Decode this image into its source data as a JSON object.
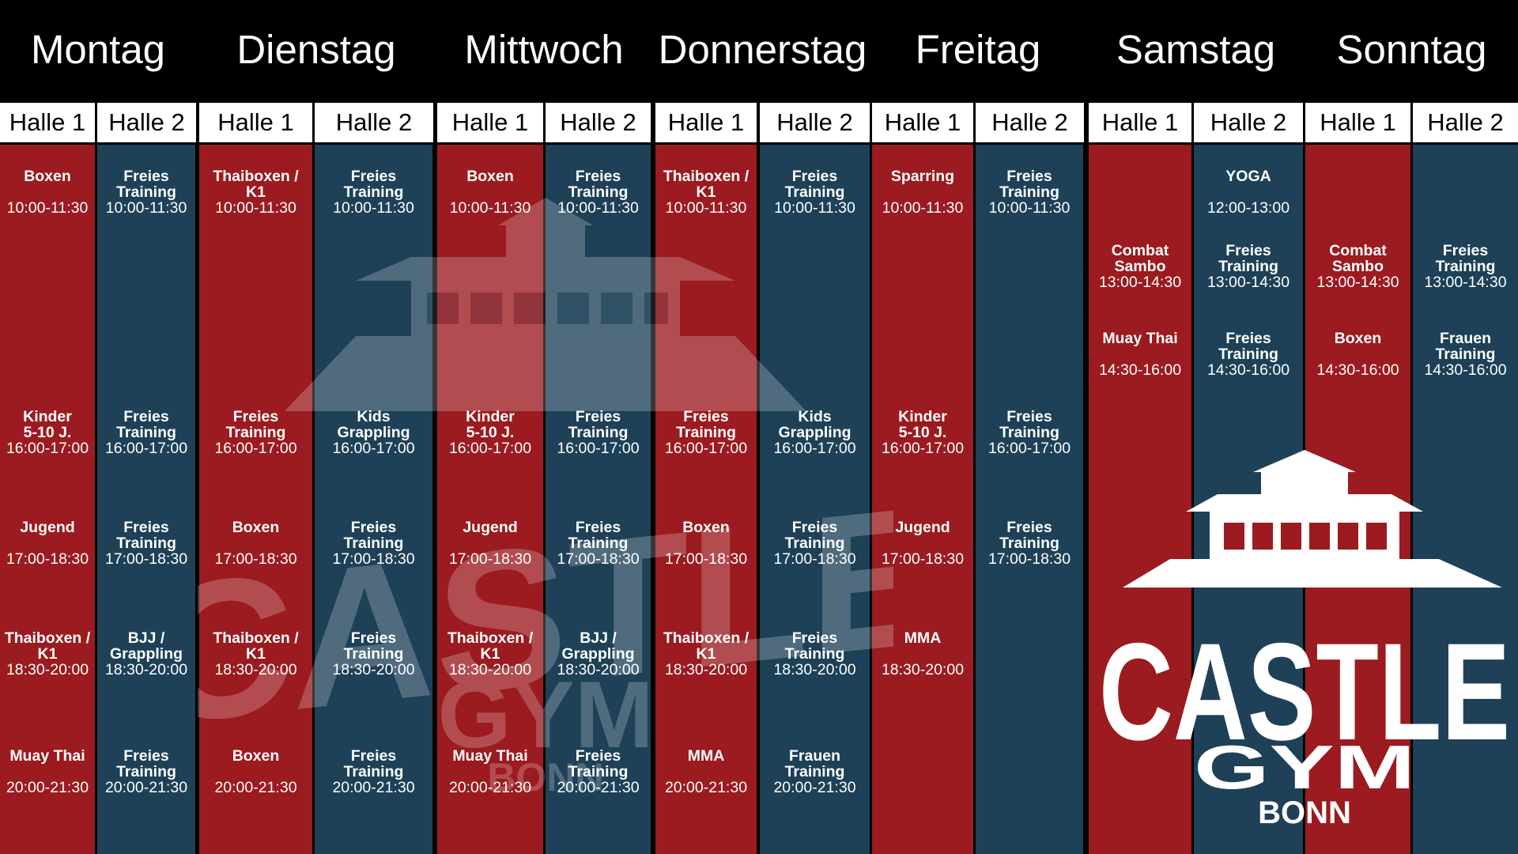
{
  "days": [
    "Montag",
    "Dienstag",
    "Mittwoch",
    "Donnerstag",
    "Freitag",
    "Samstag",
    "Sonntag"
  ],
  "hall_labels": [
    "Halle 1",
    "Halle 2"
  ],
  "schedule": {
    "montag": {
      "h1": [
        {
          "name": "Boxen",
          "time": "10:00-11:30"
        },
        {
          "name": "Kinder\n5-10 J.",
          "time": "16:00-17:00"
        },
        {
          "name": "Jugend",
          "time": "17:00-18:30"
        },
        {
          "name": "Thaiboxen /\nK1",
          "time": "18:30-20:00"
        },
        {
          "name": "Muay Thai",
          "time": "20:00-21:30"
        }
      ],
      "h2": [
        {
          "name": "Freies\nTraining",
          "time": "10:00-11:30"
        },
        {
          "name": "Freies\nTraining",
          "time": "16:00-17:00"
        },
        {
          "name": "Freies\nTraining",
          "time": "17:00-18:30"
        },
        {
          "name": "BJJ /\nGrappling",
          "time": "18:30-20:00"
        },
        {
          "name": "Freies\nTraining",
          "time": "20:00-21:30"
        }
      ]
    },
    "dienstag": {
      "h1": [
        {
          "name": "Thaiboxen /\nK1",
          "time": "10:00-11:30"
        },
        {
          "name": "Freies\nTraining",
          "time": "16:00-17:00"
        },
        {
          "name": "Boxen",
          "time": "17:00-18:30"
        },
        {
          "name": "Thaiboxen /\nK1",
          "time": "18:30-20:00"
        },
        {
          "name": "Boxen",
          "time": "20:00-21:30"
        }
      ],
      "h2": [
        {
          "name": "Freies\nTraining",
          "time": "10:00-11:30"
        },
        {
          "name": "Kids\nGrappling",
          "time": "16:00-17:00"
        },
        {
          "name": "Freies\nTraining",
          "time": "17:00-18:30"
        },
        {
          "name": "Freies\nTraining",
          "time": "18:30-20:00"
        },
        {
          "name": "Freies\nTraining",
          "time": "20:00-21:30"
        }
      ]
    },
    "mittwoch": {
      "h1": [
        {
          "name": "Boxen",
          "time": "10:00-11:30"
        },
        {
          "name": "Kinder\n5-10 J.",
          "time": "16:00-17:00"
        },
        {
          "name": "Jugend",
          "time": "17:00-18:30"
        },
        {
          "name": "Thaiboxen /\nK1",
          "time": "18:30-20:00"
        },
        {
          "name": "Muay Thai",
          "time": "20:00-21:30"
        }
      ],
      "h2": [
        {
          "name": "Freies\nTraining",
          "time": "10:00-11:30"
        },
        {
          "name": "Freies\nTraining",
          "time": "16:00-17:00"
        },
        {
          "name": "Freies\nTraining",
          "time": "17:00-18:30"
        },
        {
          "name": "BJJ /\nGrappling",
          "time": "18:30-20:00"
        },
        {
          "name": "Freies\nTraining",
          "time": "20:00-21:30"
        }
      ]
    },
    "donnerstag": {
      "h1": [
        {
          "name": "Thaiboxen /\nK1",
          "time": "10:00-11:30"
        },
        {
          "name": "Freies\nTraining",
          "time": "16:00-17:00"
        },
        {
          "name": "Boxen",
          "time": "17:00-18:30"
        },
        {
          "name": "Thaiboxen /\nK1",
          "time": "18:30-20:00"
        },
        {
          "name": "MMA",
          "time": "20:00-21:30"
        }
      ],
      "h2": [
        {
          "name": "Freies\nTraining",
          "time": "10:00-11:30"
        },
        {
          "name": "Kids\nGrappling",
          "time": "16:00-17:00"
        },
        {
          "name": "Freies\nTraining",
          "time": "17:00-18:30"
        },
        {
          "name": "Freies\nTraining",
          "time": "18:30-20:00"
        },
        {
          "name": "Frauen\nTraining",
          "time": "20:00-21:30"
        }
      ]
    },
    "freitag": {
      "h1": [
        {
          "name": "Sparring",
          "time": "10:00-11:30"
        },
        {
          "name": "Kinder\n5-10 J.",
          "time": "16:00-17:00"
        },
        {
          "name": "Jugend",
          "time": "17:00-18:30"
        },
        {
          "name": "MMA",
          "time": "18:30-20:00"
        }
      ],
      "h2": [
        {
          "name": "Freies\nTraining",
          "time": "10:00-11:30"
        },
        {
          "name": "Freies\nTraining",
          "time": "16:00-17:00"
        },
        {
          "name": "Freies\nTraining",
          "time": "17:00-18:30"
        }
      ]
    },
    "samstag": {
      "h1": [
        {
          "name": "Combat\nSambo",
          "time": "13:00-14:30"
        },
        {
          "name": "Muay Thai",
          "time": "14:30-16:00"
        }
      ],
      "h2": [
        {
          "name": "YOGA",
          "time": "12:00-13:00"
        },
        {
          "name": "Freies\nTraining",
          "time": "13:00-14:30"
        },
        {
          "name": "Freies\nTraining",
          "time": "14:30-16:00"
        }
      ]
    },
    "sonntag": {
      "h1": [
        {
          "name": "Combat\nSambo",
          "time": "13:00-14:30"
        },
        {
          "name": "Boxen",
          "time": "14:30-16:00"
        }
      ],
      "h2": [
        {
          "name": "Freies\nTraining",
          "time": "13:00-14:30"
        },
        {
          "name": "Frauen\nTraining",
          "time": "14:30-16:00"
        }
      ]
    }
  },
  "logo": {
    "word1": "CASTLE",
    "word2": "GYM",
    "word3": "BONN"
  },
  "colors": {
    "halle1": "#9b1b20",
    "halle2": "#1e4158",
    "header": "#000000",
    "hall_header": "#ffffff"
  }
}
